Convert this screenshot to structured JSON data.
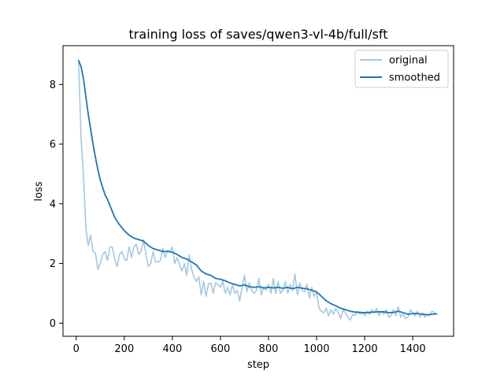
{
  "chart_data": {
    "type": "line",
    "title": "training loss of saves/qwen3-vl-4b/full/sft",
    "xlabel": "step",
    "ylabel": "loss",
    "xlim": [
      -55,
      1570
    ],
    "ylim": [
      -0.44,
      9.3
    ],
    "xticks": [
      0,
      200,
      400,
      600,
      800,
      1000,
      1200,
      1400
    ],
    "yticks": [
      0,
      2,
      4,
      6,
      8
    ],
    "grid": false,
    "legend": {
      "placement": "top-right"
    },
    "series": [
      {
        "name": "original",
        "color": "#a6c8e0",
        "points": [
          [
            10,
            8.8
          ],
          [
            20,
            6.2
          ],
          [
            30,
            5.0
          ],
          [
            40,
            3.2
          ],
          [
            50,
            2.6
          ],
          [
            60,
            2.95
          ],
          [
            70,
            2.4
          ],
          [
            80,
            2.35
          ],
          [
            90,
            1.8
          ],
          [
            100,
            2.0
          ],
          [
            110,
            2.3
          ],
          [
            120,
            2.4
          ],
          [
            130,
            2.1
          ],
          [
            140,
            2.55
          ],
          [
            150,
            2.55
          ],
          [
            160,
            2.15
          ],
          [
            170,
            1.9
          ],
          [
            180,
            2.3
          ],
          [
            190,
            2.4
          ],
          [
            200,
            2.15
          ],
          [
            210,
            2.1
          ],
          [
            220,
            2.55
          ],
          [
            230,
            2.2
          ],
          [
            240,
            2.55
          ],
          [
            250,
            2.65
          ],
          [
            260,
            2.3
          ],
          [
            270,
            2.4
          ],
          [
            280,
            2.8
          ],
          [
            290,
            2.3
          ],
          [
            300,
            1.9
          ],
          [
            310,
            2.0
          ],
          [
            320,
            2.4
          ],
          [
            330,
            2.05
          ],
          [
            340,
            2.05
          ],
          [
            350,
            2.1
          ],
          [
            360,
            2.5
          ],
          [
            370,
            2.2
          ],
          [
            380,
            2.45
          ],
          [
            390,
            2.4
          ],
          [
            400,
            2.55
          ],
          [
            410,
            2.0
          ],
          [
            420,
            2.2
          ],
          [
            430,
            1.95
          ],
          [
            440,
            1.75
          ],
          [
            450,
            2.0
          ],
          [
            460,
            1.6
          ],
          [
            470,
            2.3
          ],
          [
            480,
            1.8
          ],
          [
            490,
            1.55
          ],
          [
            500,
            1.4
          ],
          [
            510,
            1.55
          ],
          [
            520,
            0.95
          ],
          [
            530,
            1.4
          ],
          [
            540,
            0.9
          ],
          [
            550,
            1.3
          ],
          [
            560,
            1.35
          ],
          [
            570,
            1.0
          ],
          [
            580,
            1.35
          ],
          [
            590,
            1.3
          ],
          [
            600,
            1.2
          ],
          [
            610,
            1.4
          ],
          [
            620,
            1.0
          ],
          [
            630,
            1.2
          ],
          [
            640,
            0.95
          ],
          [
            650,
            1.3
          ],
          [
            660,
            1.0
          ],
          [
            670,
            1.1
          ],
          [
            680,
            0.75
          ],
          [
            690,
            1.2
          ],
          [
            700,
            1.6
          ],
          [
            710,
            1.05
          ],
          [
            720,
            1.35
          ],
          [
            730,
            1.1
          ],
          [
            740,
            1.0
          ],
          [
            750,
            1.1
          ],
          [
            760,
            1.5
          ],
          [
            770,
            0.95
          ],
          [
            780,
            1.2
          ],
          [
            790,
            1.1
          ],
          [
            800,
            1.3
          ],
          [
            810,
            1.0
          ],
          [
            820,
            1.5
          ],
          [
            830,
            1.0
          ],
          [
            840,
            1.4
          ],
          [
            850,
            1.0
          ],
          [
            860,
            1.1
          ],
          [
            870,
            1.4
          ],
          [
            880,
            1.0
          ],
          [
            890,
            1.3
          ],
          [
            900,
            1.1
          ],
          [
            910,
            1.65
          ],
          [
            920,
            0.95
          ],
          [
            930,
            1.35
          ],
          [
            940,
            1.1
          ],
          [
            950,
            1.05
          ],
          [
            960,
            1.3
          ],
          [
            970,
            0.85
          ],
          [
            980,
            1.2
          ],
          [
            990,
            0.9
          ],
          [
            1000,
            1.05
          ],
          [
            1010,
            0.5
          ],
          [
            1020,
            0.4
          ],
          [
            1030,
            0.35
          ],
          [
            1040,
            0.5
          ],
          [
            1050,
            0.25
          ],
          [
            1060,
            0.45
          ],
          [
            1070,
            0.3
          ],
          [
            1080,
            0.5
          ],
          [
            1090,
            0.35
          ],
          [
            1100,
            0.15
          ],
          [
            1110,
            0.45
          ],
          [
            1120,
            0.35
          ],
          [
            1130,
            0.2
          ],
          [
            1140,
            0.1
          ],
          [
            1150,
            0.3
          ],
          [
            1160,
            0.25
          ],
          [
            1170,
            0.4
          ],
          [
            1180,
            0.3
          ],
          [
            1190,
            0.35
          ],
          [
            1200,
            0.25
          ],
          [
            1210,
            0.4
          ],
          [
            1220,
            0.3
          ],
          [
            1230,
            0.45
          ],
          [
            1240,
            0.35
          ],
          [
            1250,
            0.5
          ],
          [
            1260,
            0.25
          ],
          [
            1270,
            0.4
          ],
          [
            1280,
            0.3
          ],
          [
            1290,
            0.45
          ],
          [
            1300,
            0.2
          ],
          [
            1310,
            0.25
          ],
          [
            1320,
            0.45
          ],
          [
            1330,
            0.25
          ],
          [
            1340,
            0.55
          ],
          [
            1350,
            0.2
          ],
          [
            1360,
            0.3
          ],
          [
            1370,
            0.15
          ],
          [
            1380,
            0.2
          ],
          [
            1390,
            0.45
          ],
          [
            1400,
            0.35
          ],
          [
            1410,
            0.25
          ],
          [
            1420,
            0.4
          ],
          [
            1430,
            0.2
          ],
          [
            1440,
            0.35
          ],
          [
            1450,
            0.2
          ],
          [
            1460,
            0.3
          ],
          [
            1470,
            0.25
          ],
          [
            1480,
            0.4
          ],
          [
            1490,
            0.35
          ],
          [
            1500,
            0.3
          ]
        ]
      },
      {
        "name": "smoothed",
        "color": "#1f77b4",
        "points": [
          [
            10,
            8.8
          ],
          [
            20,
            8.6
          ],
          [
            30,
            8.2
          ],
          [
            40,
            7.6
          ],
          [
            50,
            7.0
          ],
          [
            60,
            6.5
          ],
          [
            70,
            6.0
          ],
          [
            80,
            5.55
          ],
          [
            90,
            5.15
          ],
          [
            100,
            4.8
          ],
          [
            110,
            4.55
          ],
          [
            120,
            4.3
          ],
          [
            130,
            4.15
          ],
          [
            140,
            3.95
          ],
          [
            150,
            3.75
          ],
          [
            160,
            3.55
          ],
          [
            170,
            3.42
          ],
          [
            180,
            3.3
          ],
          [
            190,
            3.2
          ],
          [
            200,
            3.1
          ],
          [
            220,
            2.95
          ],
          [
            240,
            2.85
          ],
          [
            260,
            2.8
          ],
          [
            280,
            2.75
          ],
          [
            300,
            2.6
          ],
          [
            320,
            2.5
          ],
          [
            340,
            2.45
          ],
          [
            360,
            2.4
          ],
          [
            380,
            2.4
          ],
          [
            400,
            2.38
          ],
          [
            420,
            2.3
          ],
          [
            440,
            2.2
          ],
          [
            460,
            2.15
          ],
          [
            480,
            2.05
          ],
          [
            500,
            1.95
          ],
          [
            520,
            1.75
          ],
          [
            540,
            1.65
          ],
          [
            560,
            1.6
          ],
          [
            580,
            1.5
          ],
          [
            600,
            1.47
          ],
          [
            620,
            1.42
          ],
          [
            640,
            1.35
          ],
          [
            660,
            1.3
          ],
          [
            680,
            1.25
          ],
          [
            700,
            1.28
          ],
          [
            720,
            1.22
          ],
          [
            740,
            1.2
          ],
          [
            760,
            1.22
          ],
          [
            780,
            1.18
          ],
          [
            800,
            1.2
          ],
          [
            820,
            1.18
          ],
          [
            840,
            1.2
          ],
          [
            860,
            1.17
          ],
          [
            880,
            1.2
          ],
          [
            900,
            1.15
          ],
          [
            920,
            1.2
          ],
          [
            940,
            1.17
          ],
          [
            960,
            1.15
          ],
          [
            980,
            1.1
          ],
          [
            1000,
            1.05
          ],
          [
            1020,
            0.9
          ],
          [
            1040,
            0.75
          ],
          [
            1060,
            0.65
          ],
          [
            1080,
            0.58
          ],
          [
            1100,
            0.5
          ],
          [
            1120,
            0.45
          ],
          [
            1140,
            0.4
          ],
          [
            1160,
            0.37
          ],
          [
            1180,
            0.36
          ],
          [
            1200,
            0.35
          ],
          [
            1220,
            0.36
          ],
          [
            1240,
            0.37
          ],
          [
            1260,
            0.38
          ],
          [
            1280,
            0.38
          ],
          [
            1300,
            0.35
          ],
          [
            1320,
            0.36
          ],
          [
            1340,
            0.4
          ],
          [
            1360,
            0.35
          ],
          [
            1380,
            0.3
          ],
          [
            1400,
            0.32
          ],
          [
            1420,
            0.32
          ],
          [
            1440,
            0.3
          ],
          [
            1460,
            0.28
          ],
          [
            1480,
            0.3
          ],
          [
            1500,
            0.31
          ]
        ]
      }
    ]
  }
}
